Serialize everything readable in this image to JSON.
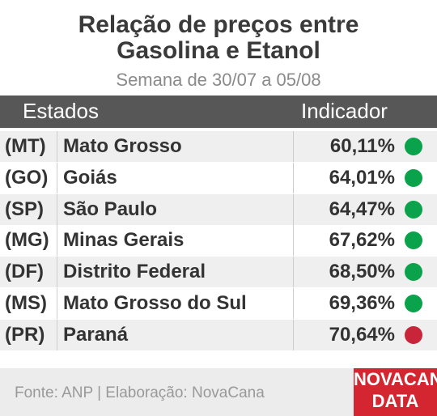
{
  "header": {
    "title_line1": "Relação de preços entre",
    "title_line2": "Gasolina e Etanol",
    "subtitle": "Semana de 30/07 a 05/08"
  },
  "table": {
    "columns": [
      "Estados",
      "Indicador"
    ],
    "rows": [
      {
        "code": "(MT)",
        "state": "Mato Grosso",
        "value": "60,11%",
        "color": "#0aa24b"
      },
      {
        "code": "(GO)",
        "state": "Goiás",
        "value": "64,01%",
        "color": "#0aa24b"
      },
      {
        "code": "(SP)",
        "state": "São Paulo",
        "value": "64,47%",
        "color": "#0aa24b"
      },
      {
        "code": "(MG)",
        "state": "Minas Gerais",
        "value": "67,62%",
        "color": "#0aa24b"
      },
      {
        "code": "(DF)",
        "state": "Distrito Federal",
        "value": "68,50%",
        "color": "#0aa24b"
      },
      {
        "code": "(MS)",
        "state": "Mato Grosso do Sul",
        "value": "69,36%",
        "color": "#0aa24b"
      },
      {
        "code": "(PR)",
        "state": "Paraná",
        "value": "70,64%",
        "color": "#c8243a"
      }
    ]
  },
  "footer": {
    "source": "Fonte: ANP | Elaboração: NovaCana",
    "logo_line1": "NOVACANA",
    "logo_line2": "DATA"
  }
}
